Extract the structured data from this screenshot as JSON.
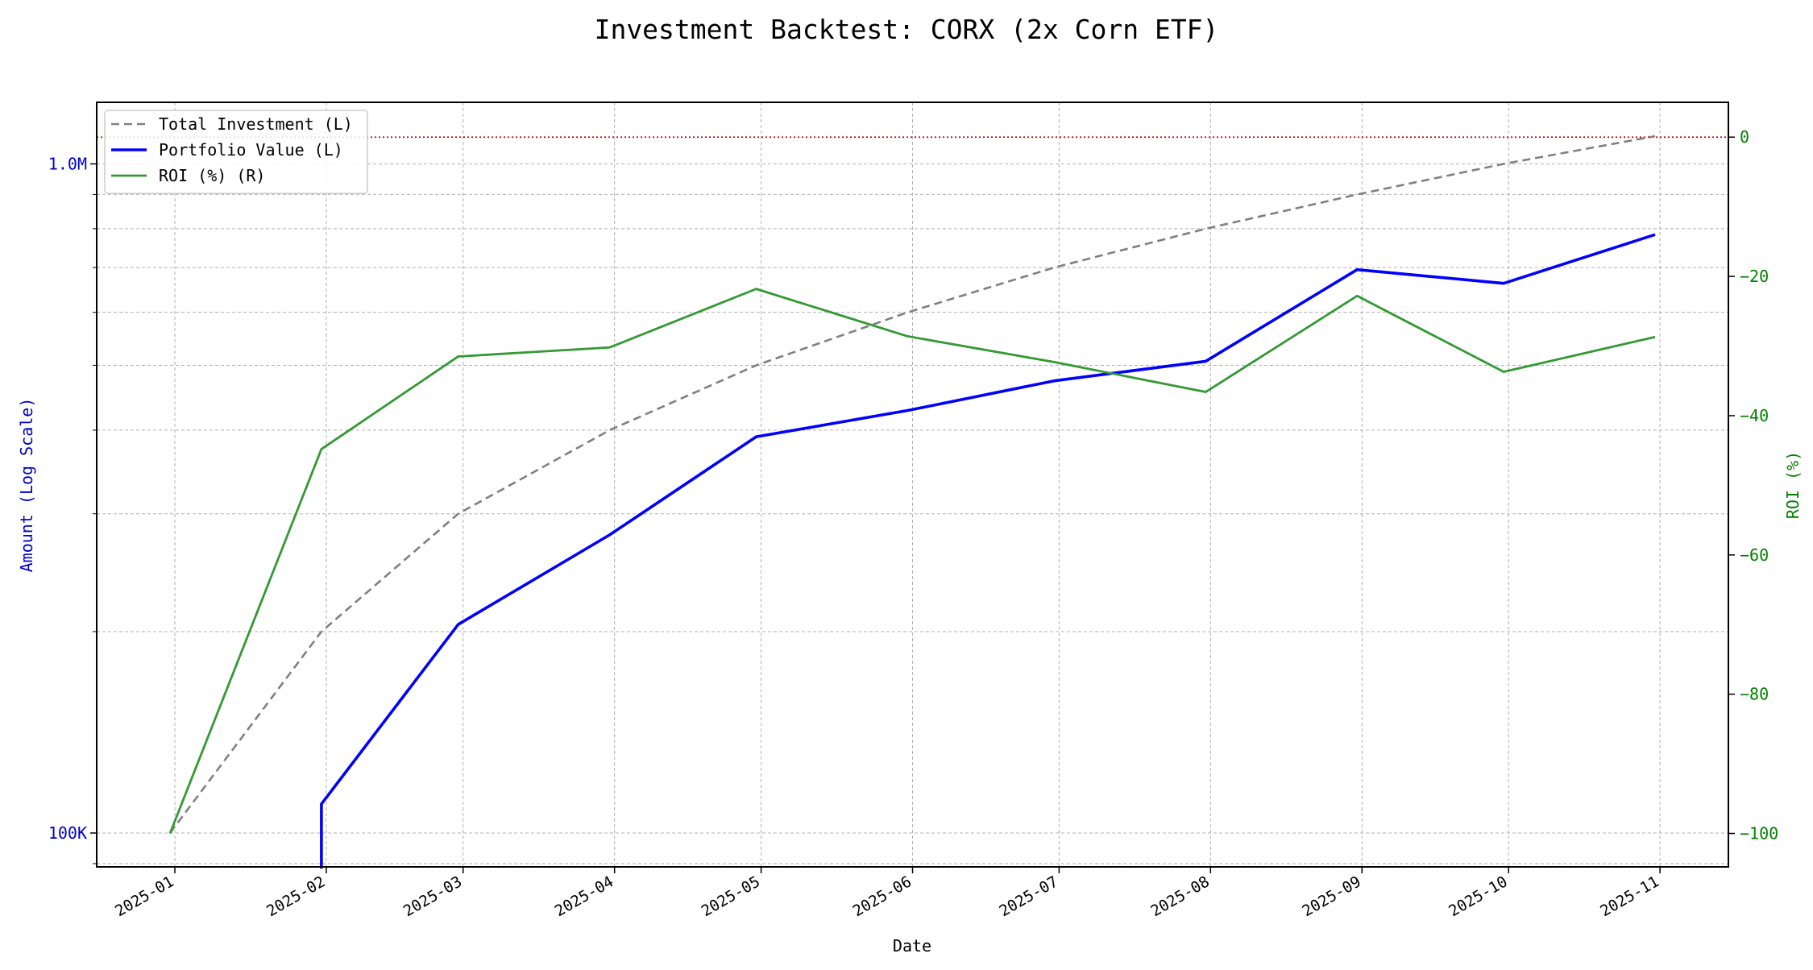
{
  "chart_data": {
    "type": "line",
    "title": "Investment Backtest: CORX (2x Corn ETF)",
    "xlabel": "Date",
    "ylabel_left": "Amount (Log Scale)",
    "ylabel_right": "ROI (%)",
    "y_left_scale": "log",
    "y_left_lim": [
      89000,
      1236000
    ],
    "y_right_lim": [
      -104.8,
      5
    ],
    "x_lim": [
      "2024-12-16",
      "2025-11-15"
    ],
    "grid": true,
    "legend_placement": "upper-left",
    "x": [
      "2024-12-31",
      "2025-01-31",
      "2025-02-28",
      "2025-03-31",
      "2025-04-30",
      "2025-05-31",
      "2025-06-30",
      "2025-07-31",
      "2025-08-31",
      "2025-09-30",
      "2025-10-31"
    ],
    "x_ticks": [
      "2025-01",
      "2025-02",
      "2025-03",
      "2025-04",
      "2025-05",
      "2025-06",
      "2025-07",
      "2025-08",
      "2025-09",
      "2025-10",
      "2025-11"
    ],
    "y_left_ticks": [
      {
        "value": 100000,
        "label": "100K"
      },
      {
        "value": 1000000,
        "label": "1.0M"
      }
    ],
    "y_right_ticks": [
      0,
      -20,
      -40,
      -60,
      -80,
      -100
    ],
    "reference_line": {
      "axis": "right",
      "value": 0,
      "color": "#cc0000",
      "style": "dotted"
    },
    "series": [
      {
        "name": "Total Investment (L)",
        "axis": "left",
        "color": "#808080",
        "style": "dashed",
        "values": [
          100000,
          200000,
          300000,
          400000,
          500000,
          600000,
          700000,
          800000,
          900000,
          1000000,
          1100000
        ]
      },
      {
        "name": "Portfolio Value (L)",
        "axis": "left",
        "color": "#0000ff",
        "style": "solid",
        "values": [
          0,
          110500,
          205000,
          279000,
          391000,
          428000,
          474000,
          507000,
          695000,
          663000,
          784000
        ]
      },
      {
        "name": "ROI (%) (R)",
        "axis": "right",
        "color": "#339933",
        "style": "solid",
        "values": [
          -100,
          -44.8,
          -31.5,
          -30.2,
          -21.8,
          -28.6,
          -32.3,
          -36.6,
          -22.8,
          -33.7,
          -28.7
        ]
      }
    ],
    "colors": {
      "left_axis": "#0000cc",
      "right_axis": "#008000"
    }
  }
}
